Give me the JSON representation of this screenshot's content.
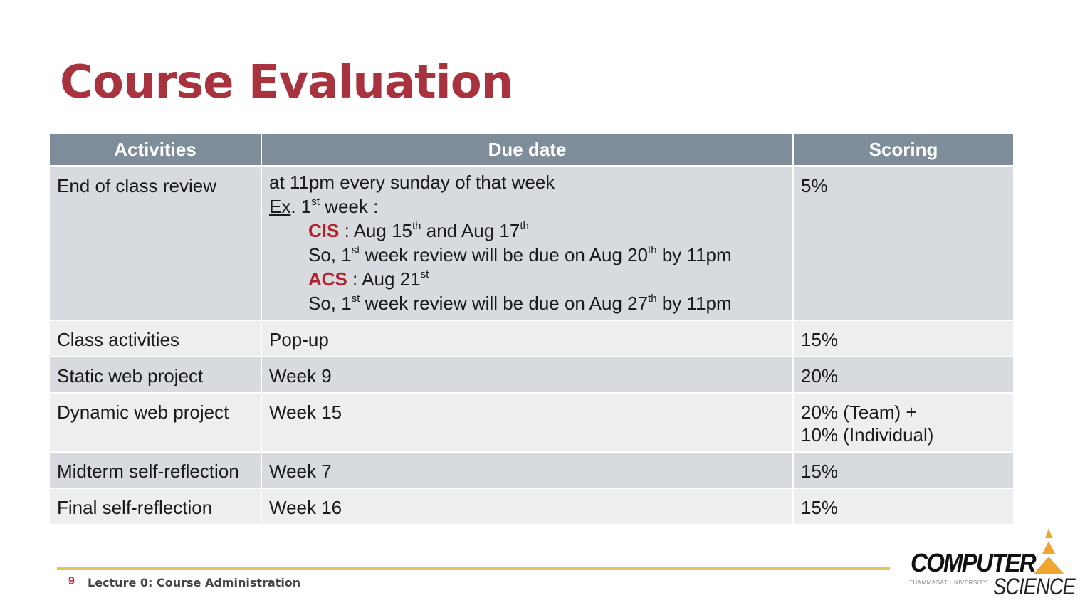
{
  "title": "Course Evaluation",
  "table": {
    "headers": [
      "Activities",
      "Due date",
      "Scoring"
    ],
    "rows": [
      {
        "activity": "End of class review",
        "due": {
          "line1": "at 11pm every sunday of that week",
          "ex_label": "Ex",
          "ex_rest": ". 1",
          "ex_sup": "st",
          "ex_tail": " week :",
          "cis": {
            "label": "CIS",
            "t1": " : Aug 15",
            "s1": "th",
            "t2": " and Aug 17",
            "s2": "th",
            "due_a": "So, 1",
            "due_s1": "st",
            "due_b": " week review will be due on Aug 20",
            "due_s2": "th",
            "due_c": " by 11pm"
          },
          "acs": {
            "label": "ACS",
            "t1": " : Aug 21",
            "s1": "st",
            "due_a": "So, 1",
            "due_s1": "st",
            "due_b": " week review will be due on Aug 27",
            "due_s2": "th",
            "due_c": " by 11pm"
          }
        },
        "score": "5%"
      },
      {
        "activity": "Class activities",
        "due": "Pop-up",
        "score": "15%"
      },
      {
        "activity": "Static web project",
        "due": "Week 9",
        "score": "20%"
      },
      {
        "activity": "Dynamic web project",
        "due": "Week 15",
        "score_line1": "20% (Team) +",
        "score_line2": "10% (Individual)"
      },
      {
        "activity": "Midterm self-reflection",
        "due": "Week 7",
        "score": "15%"
      },
      {
        "activity": "Final self-reflection",
        "due": "Week 16",
        "score": "15%"
      }
    ]
  },
  "footer": {
    "page_number": "9",
    "lecture": "Lecture 0: Course Administration"
  },
  "logo": {
    "word1": "COMPUTER",
    "subtitle": "THAMMASAT UNIVERSITY",
    "word2": "SCIENCE"
  },
  "colors": {
    "accent": "#a8323e",
    "header_bg": "#7e8d99",
    "row_dark": "#d7dade",
    "row_light": "#eceeef",
    "rule": "#e6c55b",
    "logo_orange": "#f0a530"
  }
}
